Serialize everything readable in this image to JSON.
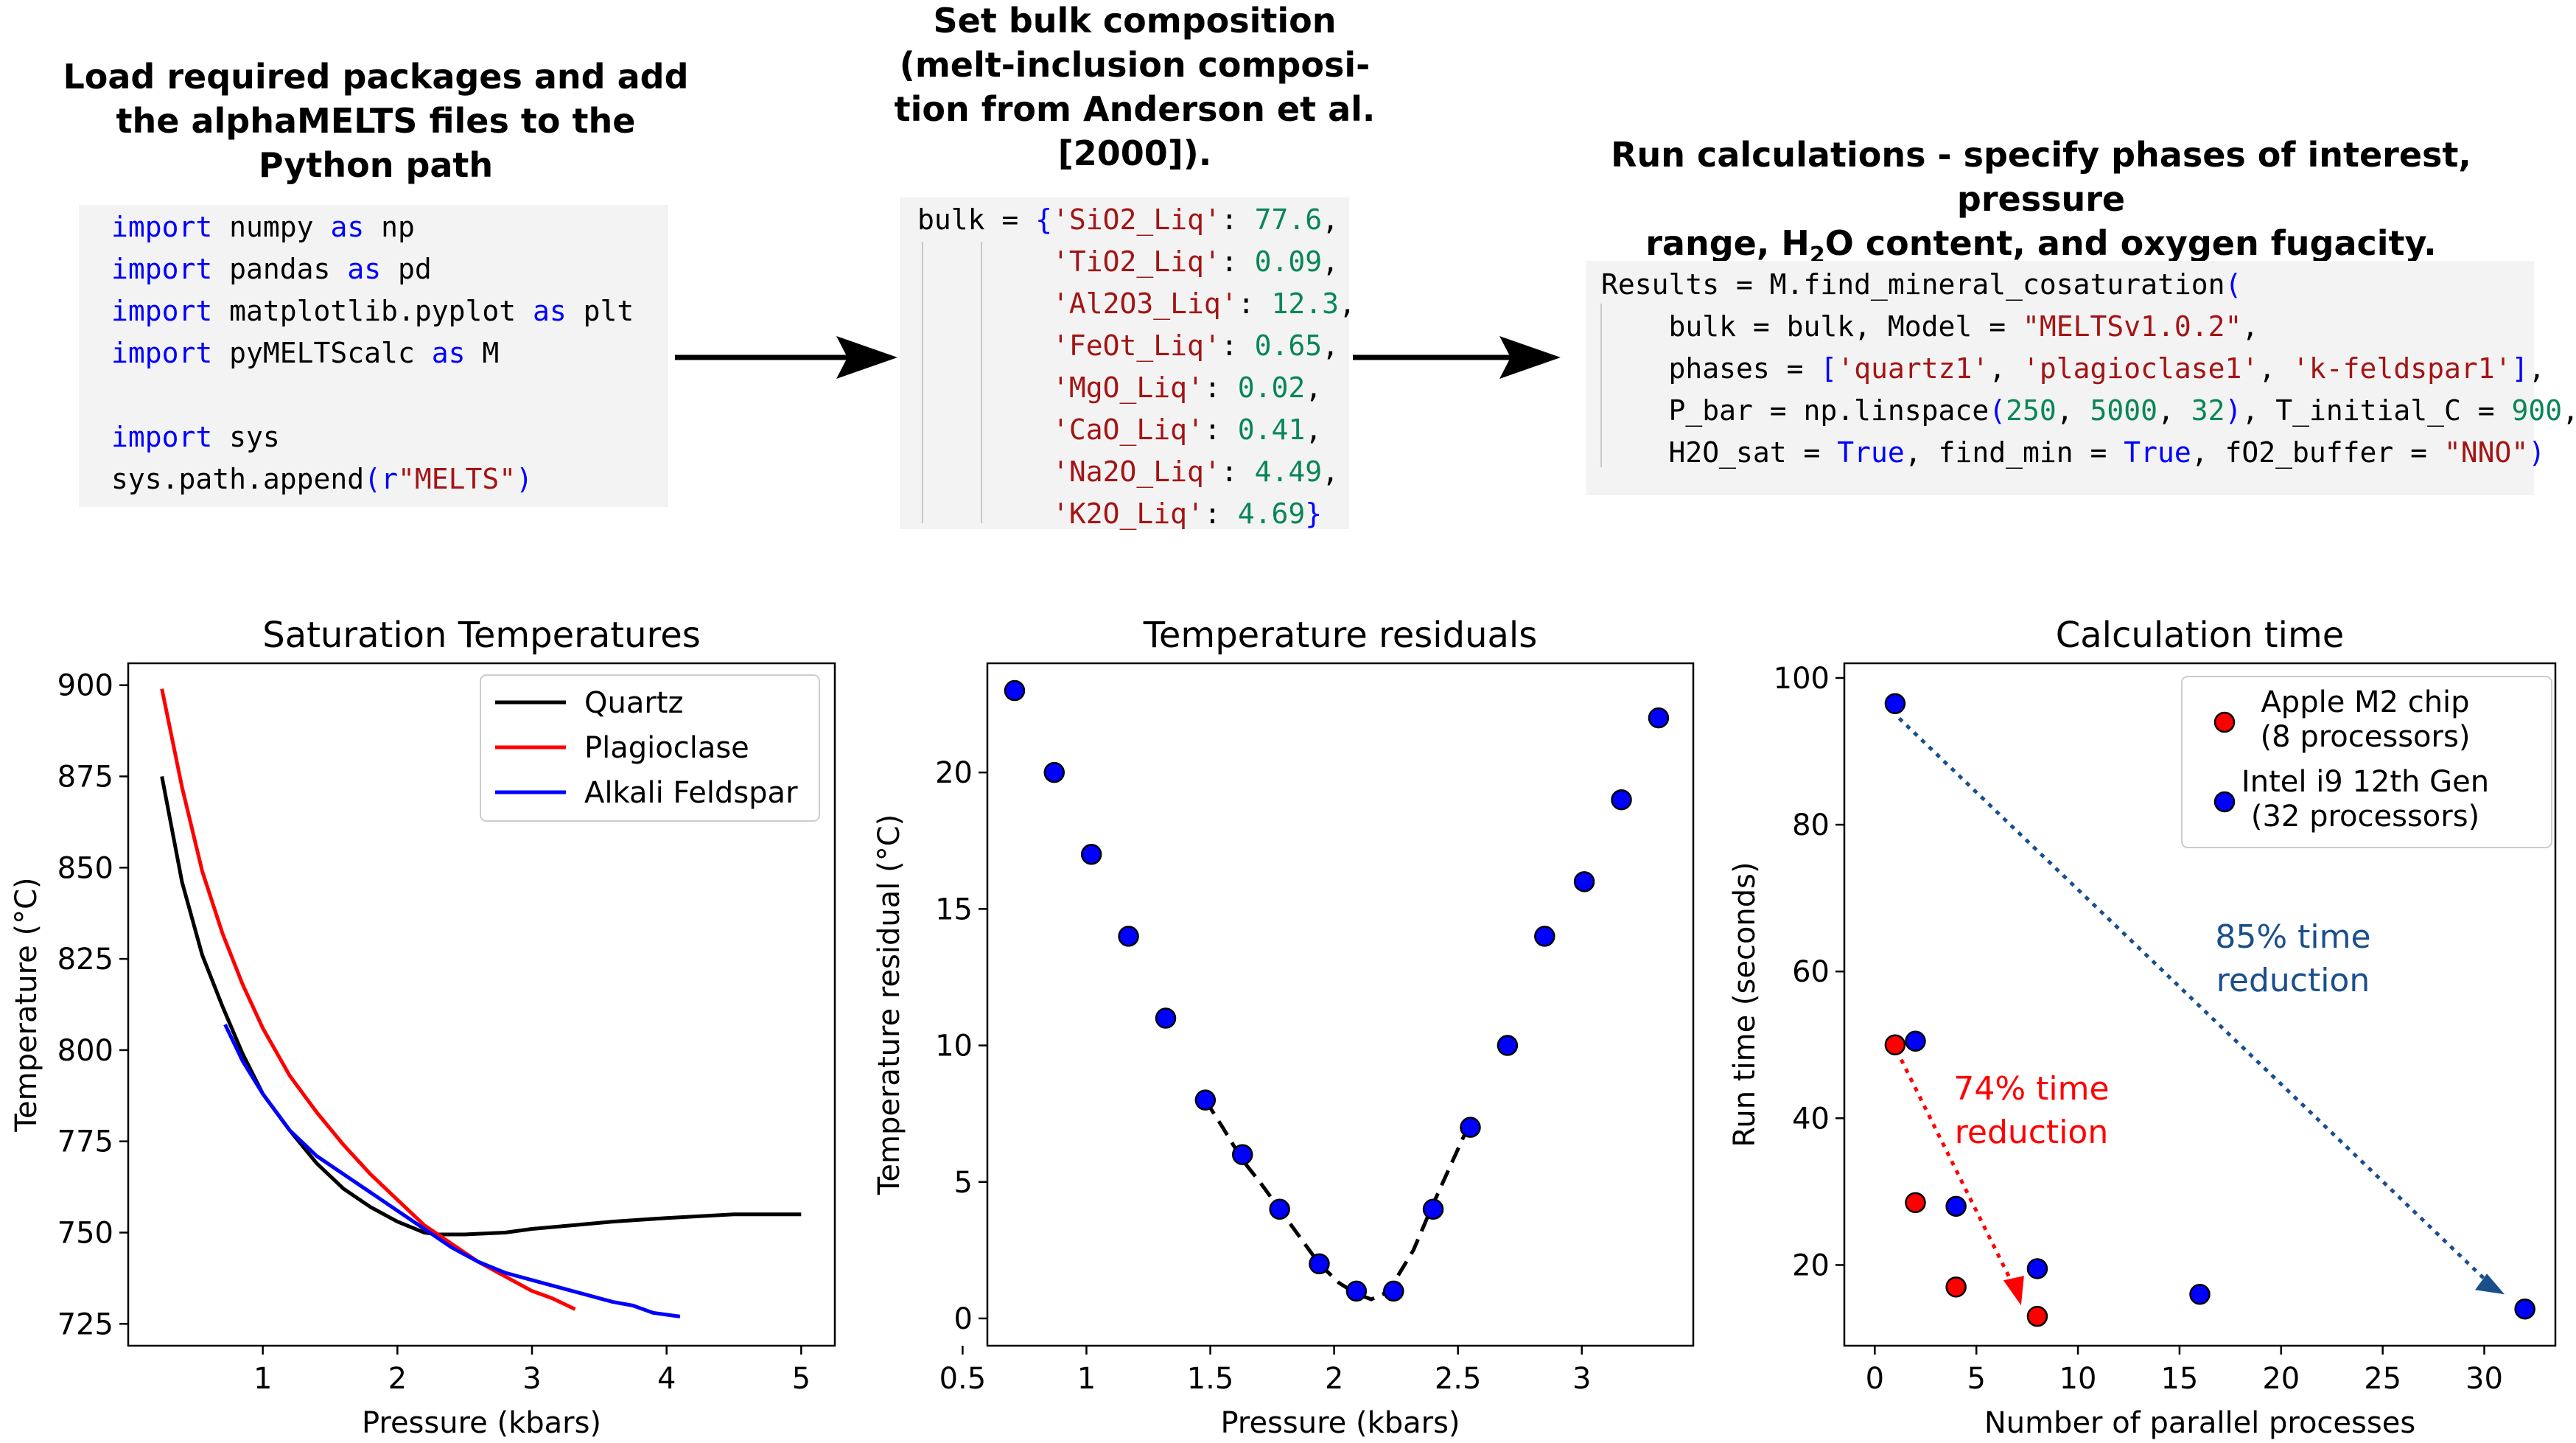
{
  "steps": {
    "step1_title": [
      "Load required packages and add",
      "the alphaMELTS files to the",
      "Python path"
    ],
    "step2_title": [
      "Set bulk composition",
      "(melt-inclusion composi-",
      "tion from Anderson et al.",
      "[2000])."
    ],
    "step3_title_line1": "Run calculations - specify phases of interest, pressure",
    "step3_title_line2_pre": "range, H",
    "step3_title_line2_sub": "2",
    "step3_title_line2_post": "O content, and oxygen fugacity."
  },
  "code1": [
    [
      {
        "t": "import",
        "c": "kw"
      },
      {
        "t": " numpy ",
        "c": "blk"
      },
      {
        "t": "as",
        "c": "kw"
      },
      {
        "t": " np",
        "c": "blk"
      }
    ],
    [
      {
        "t": "import",
        "c": "kw"
      },
      {
        "t": " pandas ",
        "c": "blk"
      },
      {
        "t": "as",
        "c": "kw"
      },
      {
        "t": " pd",
        "c": "blk"
      }
    ],
    [
      {
        "t": "import",
        "c": "kw"
      },
      {
        "t": " matplotlib.pyplot ",
        "c": "blk"
      },
      {
        "t": "as",
        "c": "kw"
      },
      {
        "t": " plt",
        "c": "blk"
      }
    ],
    [
      {
        "t": "import",
        "c": "kw"
      },
      {
        "t": " pyMELTScalc ",
        "c": "blk"
      },
      {
        "t": "as",
        "c": "kw"
      },
      {
        "t": " M",
        "c": "blk"
      }
    ],
    [
      {
        "t": " ",
        "c": "blk"
      }
    ],
    [
      {
        "t": "import",
        "c": "kw"
      },
      {
        "t": " sys",
        "c": "blk"
      }
    ],
    [
      {
        "t": "sys.path.append",
        "c": "blk"
      },
      {
        "t": "(",
        "c": "kw"
      },
      {
        "t": "r",
        "c": "kw"
      },
      {
        "t": "\"MELTS\"",
        "c": "str"
      },
      {
        "t": ")",
        "c": "kw"
      }
    ]
  ],
  "code2": [
    [
      {
        "t": "bulk = ",
        "c": "blk"
      },
      {
        "t": "{",
        "c": "kw"
      },
      {
        "t": "'SiO2_Liq'",
        "c": "str"
      },
      {
        "t": ": ",
        "c": "blk"
      },
      {
        "t": "77.6",
        "c": "num"
      },
      {
        "t": ",",
        "c": "blk"
      }
    ],
    [
      {
        "t": "        ",
        "c": "blk"
      },
      {
        "t": "'TiO2_Liq'",
        "c": "str"
      },
      {
        "t": ": ",
        "c": "blk"
      },
      {
        "t": "0.09",
        "c": "num"
      },
      {
        "t": ",",
        "c": "blk"
      }
    ],
    [
      {
        "t": "        ",
        "c": "blk"
      },
      {
        "t": "'Al2O3_Liq'",
        "c": "str"
      },
      {
        "t": ": ",
        "c": "blk"
      },
      {
        "t": "12.3",
        "c": "num"
      },
      {
        "t": ",",
        "c": "blk"
      }
    ],
    [
      {
        "t": "        ",
        "c": "blk"
      },
      {
        "t": "'FeOt_Liq'",
        "c": "str"
      },
      {
        "t": ": ",
        "c": "blk"
      },
      {
        "t": "0.65",
        "c": "num"
      },
      {
        "t": ",",
        "c": "blk"
      }
    ],
    [
      {
        "t": "        ",
        "c": "blk"
      },
      {
        "t": "'MgO_Liq'",
        "c": "str"
      },
      {
        "t": ": ",
        "c": "blk"
      },
      {
        "t": "0.02",
        "c": "num"
      },
      {
        "t": ",",
        "c": "blk"
      }
    ],
    [
      {
        "t": "        ",
        "c": "blk"
      },
      {
        "t": "'CaO_Liq'",
        "c": "str"
      },
      {
        "t": ": ",
        "c": "blk"
      },
      {
        "t": "0.41",
        "c": "num"
      },
      {
        "t": ",",
        "c": "blk"
      }
    ],
    [
      {
        "t": "        ",
        "c": "blk"
      },
      {
        "t": "'Na2O_Liq'",
        "c": "str"
      },
      {
        "t": ": ",
        "c": "blk"
      },
      {
        "t": "4.49",
        "c": "num"
      },
      {
        "t": ",",
        "c": "blk"
      }
    ],
    [
      {
        "t": "        ",
        "c": "blk"
      },
      {
        "t": "'K2O_Liq'",
        "c": "str"
      },
      {
        "t": ": ",
        "c": "blk"
      },
      {
        "t": "4.69",
        "c": "num"
      },
      {
        "t": "}",
        "c": "kw"
      }
    ]
  ],
  "code3": [
    [
      {
        "t": "Results = M.find_mineral_cosaturation",
        "c": "blk"
      },
      {
        "t": "(",
        "c": "kw"
      }
    ],
    [
      {
        "t": "    bulk = bulk, Model = ",
        "c": "blk"
      },
      {
        "t": "\"MELTSv1.0.2\"",
        "c": "str"
      },
      {
        "t": ",",
        "c": "blk"
      }
    ],
    [
      {
        "t": "    phases = ",
        "c": "blk"
      },
      {
        "t": "[",
        "c": "kw"
      },
      {
        "t": "'quartz1'",
        "c": "str"
      },
      {
        "t": ", ",
        "c": "blk"
      },
      {
        "t": "'plagioclase1'",
        "c": "str"
      },
      {
        "t": ", ",
        "c": "blk"
      },
      {
        "t": "'k-feldspar1'",
        "c": "str"
      },
      {
        "t": "]",
        "c": "kw"
      },
      {
        "t": ",",
        "c": "blk"
      }
    ],
    [
      {
        "t": "    P_bar = np.linspace",
        "c": "blk"
      },
      {
        "t": "(",
        "c": "kw"
      },
      {
        "t": "250",
        "c": "num"
      },
      {
        "t": ", ",
        "c": "blk"
      },
      {
        "t": "5000",
        "c": "num"
      },
      {
        "t": ", ",
        "c": "blk"
      },
      {
        "t": "32",
        "c": "num"
      },
      {
        "t": ")",
        "c": "kw"
      },
      {
        "t": ", T_initial_C = ",
        "c": "blk"
      },
      {
        "t": "900",
        "c": "num"
      },
      {
        "t": ",",
        "c": "blk"
      }
    ],
    [
      {
        "t": "    H2O_sat = ",
        "c": "blk"
      },
      {
        "t": "True",
        "c": "kw"
      },
      {
        "t": ", find_min = ",
        "c": "blk"
      },
      {
        "t": "True",
        "c": "kw"
      },
      {
        "t": ", fO2_buffer = ",
        "c": "blk"
      },
      {
        "t": "\"NNO\"",
        "c": "str"
      },
      {
        "t": ")",
        "c": "kw"
      }
    ]
  ],
  "colors": {
    "quartz": "#000000",
    "plagioclase": "#ff0000",
    "alkali": "#0000ff",
    "blue_marker": "#0000ff",
    "red_marker": "#ff0000",
    "blue_arrow": "#1a4f8c",
    "red_arrow": "#ff0000",
    "code_bg": "#f3f3f3"
  },
  "chart_data": [
    {
      "type": "line",
      "title": "Saturation Temperatures",
      "xlabel": "Pressure (kbars)",
      "ylabel": "Temperature (°C)",
      "xlim": [
        0,
        5.25
      ],
      "ylim": [
        719,
        906
      ],
      "xticks": [
        1,
        2,
        3,
        4,
        5
      ],
      "yticks": [
        725,
        750,
        775,
        800,
        825,
        850,
        875,
        900
      ],
      "legend": "top-right",
      "series": [
        {
          "name": "Quartz",
          "color": "#000000",
          "x": [
            0.25,
            0.4,
            0.55,
            0.7,
            0.85,
            1.0,
            1.2,
            1.4,
            1.6,
            1.8,
            2.0,
            2.2,
            2.3,
            2.5,
            2.8,
            3.0,
            3.3,
            3.6,
            4.0,
            4.5,
            5.0
          ],
          "y": [
            875,
            846,
            826,
            812,
            799,
            788,
            778,
            769,
            762,
            757,
            753,
            750,
            749.5,
            749.5,
            750,
            751,
            752,
            753,
            754,
            755,
            755
          ]
        },
        {
          "name": "Plagioclase",
          "color": "#ff0000",
          "x": [
            0.25,
            0.4,
            0.55,
            0.7,
            0.85,
            1.0,
            1.2,
            1.4,
            1.6,
            1.8,
            2.0,
            2.2,
            2.4,
            2.6,
            2.8,
            2.9,
            3.0,
            3.15,
            3.32
          ],
          "y": [
            899,
            872,
            849,
            832,
            818,
            806,
            793,
            783,
            774,
            766,
            759,
            752,
            747,
            742,
            738,
            736,
            734,
            732,
            729
          ]
        },
        {
          "name": "Alkali Feldspar",
          "color": "#0000ff",
          "x": [
            0.72,
            0.85,
            1.0,
            1.2,
            1.4,
            1.6,
            1.8,
            2.0,
            2.2,
            2.4,
            2.6,
            2.8,
            3.0,
            3.2,
            3.4,
            3.6,
            3.75,
            3.9,
            4.1
          ],
          "y": [
            807,
            797,
            788,
            778,
            771,
            766,
            761,
            756,
            751,
            746,
            742,
            739,
            737,
            735,
            733,
            731,
            730,
            728,
            727
          ]
        }
      ]
    },
    {
      "type": "scatter",
      "title": "Temperature residuals",
      "xlabel": "Pressure (kbars)",
      "ylabel": "Temperature residual (°C)",
      "xlim": [
        0.6,
        3.45
      ],
      "ylim": [
        -1,
        24
      ],
      "xticks": [
        0.5,
        1,
        1.5,
        2,
        2.5,
        3
      ],
      "xtick_labels": [
        "0.5",
        "1",
        "1.5",
        "2",
        "2.5",
        "3"
      ],
      "yticks": [
        0,
        5,
        10,
        15,
        20
      ],
      "points": {
        "x": [
          0.71,
          0.87,
          1.02,
          1.17,
          1.32,
          1.48,
          1.63,
          1.78,
          1.94,
          2.09,
          2.24,
          2.4,
          2.55,
          2.7,
          2.85,
          3.01,
          3.16,
          3.31
        ],
        "y": [
          23,
          20,
          17,
          14,
          11,
          8,
          6,
          4,
          2,
          1,
          1,
          4,
          7,
          10,
          14,
          16,
          19,
          22
        ]
      },
      "fit": {
        "x": [
          1.48,
          1.55,
          1.63,
          1.7,
          1.78,
          1.86,
          1.94,
          2.02,
          2.09,
          2.15,
          2.2,
          2.24,
          2.32,
          2.4,
          2.48,
          2.55
        ],
        "y": [
          8,
          7,
          5.8,
          5,
          4,
          3,
          2,
          1.3,
          0.9,
          0.7,
          0.9,
          1.3,
          2.5,
          4.2,
          5.8,
          7.2
        ]
      }
    },
    {
      "type": "scatter",
      "title": "Calculation time",
      "xlabel": "Number of parallel processes",
      "ylabel": "Run time (seconds)",
      "xlim": [
        -1.5,
        33.5
      ],
      "ylim": [
        9,
        102
      ],
      "xticks": [
        0,
        5,
        10,
        15,
        20,
        25,
        30
      ],
      "yticks": [
        20,
        40,
        60,
        80,
        100
      ],
      "legend": "top-right",
      "series": [
        {
          "name": "Apple M2 chip\n(8 processors)",
          "color": "#ff0000",
          "x": [
            1,
            2,
            4,
            8
          ],
          "y": [
            50.0,
            28.5,
            17.0,
            13.0
          ]
        },
        {
          "name": "Intel i9 12th Gen\n(32 processors)",
          "color": "#0000ff",
          "x": [
            1,
            2,
            4,
            8,
            16,
            32
          ],
          "y": [
            96.5,
            50.5,
            28.0,
            19.5,
            16.0,
            14.0
          ]
        }
      ],
      "annotations": [
        {
          "text": [
            "85% time",
            "reduction"
          ],
          "color": "#1a4f8c"
        },
        {
          "text": [
            "74% time",
            "reduction"
          ],
          "color": "#ff0000"
        }
      ]
    }
  ]
}
